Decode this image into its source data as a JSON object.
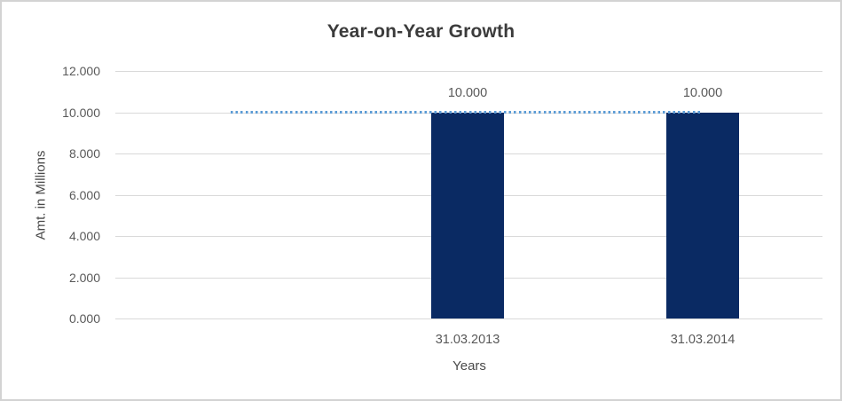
{
  "chart_data": {
    "type": "bar",
    "title": "Year-on-Year Growth",
    "xlabel": "Years",
    "ylabel": "Amt. in Millions",
    "categories": [
      "31.03.2013",
      "31.03.2014"
    ],
    "series": [
      {
        "name": "Amount",
        "type": "column",
        "color": "#0a2a63",
        "values": [
          10.0,
          10.0
        ],
        "data_labels": [
          "10.000",
          "10.000"
        ]
      },
      {
        "name": "Trendline",
        "type": "dotted-line",
        "color": "#5b9bd5",
        "value": 10.0,
        "note": "horizontal dotted line at the 10.000 level extending one category width left of the first bar"
      }
    ],
    "ylim": [
      0,
      12
    ],
    "ytick_step": 2,
    "yticks": [
      "12.000",
      "10.000",
      "8.000",
      "6.000",
      "4.000",
      "2.000",
      "0.000"
    ],
    "grid": true,
    "legend_position": "none"
  },
  "colors": {
    "bar": "#0a2a63",
    "trend_dots": "#5b9bd5",
    "gridline": "#d9d9d9",
    "tick_text": "#595959",
    "title_text": "#3b3b3b",
    "frame_border": "#d3d3d3",
    "background": "#ffffff"
  }
}
